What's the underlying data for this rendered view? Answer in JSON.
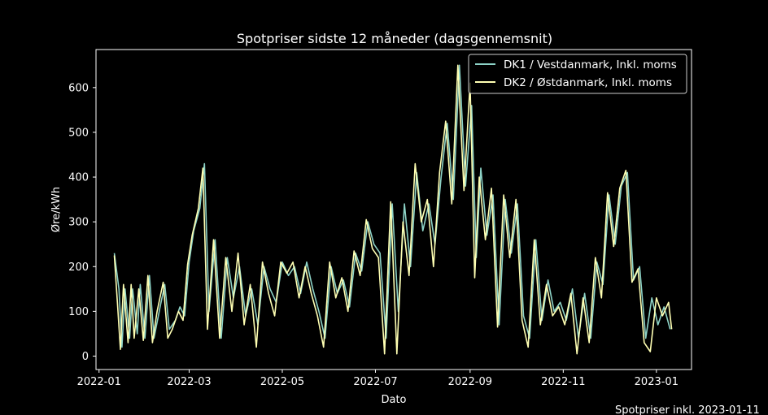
{
  "chart_data": {
    "type": "line",
    "title": "Spotpriser sidste 12 måneder (dagsgennemsnit)",
    "xlabel": "Dato",
    "ylabel": "Øre/kWh",
    "footnote": "Spotpriser inkl. 2023-01-11",
    "xlim": [
      "2021-12-30",
      "2023-01-24"
    ],
    "ylim": [
      -30,
      685
    ],
    "yticks": [
      0,
      100,
      200,
      300,
      400,
      500,
      600
    ],
    "xticks": [
      "2022-01",
      "2022-03",
      "2022-05",
      "2022-07",
      "2022-09",
      "2022-11",
      "2023-01"
    ],
    "grid": false,
    "legend_position": "top-right",
    "background": "#000000",
    "series": [
      {
        "name": "DK1 / Vestdanmark, Inkl. moms",
        "color": "#8dd3c7",
        "points": [
          [
            "2022-01-11",
            230
          ],
          [
            "2022-01-14",
            150
          ],
          [
            "2022-01-16",
            20
          ],
          [
            "2022-01-18",
            150
          ],
          [
            "2022-01-21",
            40
          ],
          [
            "2022-01-23",
            150
          ],
          [
            "2022-01-26",
            50
          ],
          [
            "2022-01-28",
            160
          ],
          [
            "2022-01-31",
            40
          ],
          [
            "2022-02-03",
            180
          ],
          [
            "2022-02-06",
            40
          ],
          [
            "2022-02-10",
            110
          ],
          [
            "2022-02-13",
            160
          ],
          [
            "2022-02-16",
            60
          ],
          [
            "2022-02-20",
            80
          ],
          [
            "2022-02-23",
            110
          ],
          [
            "2022-02-26",
            90
          ],
          [
            "2022-03-01",
            210
          ],
          [
            "2022-03-04",
            280
          ],
          [
            "2022-03-08",
            330
          ],
          [
            "2022-03-11",
            430
          ],
          [
            "2022-03-14",
            100
          ],
          [
            "2022-03-18",
            260
          ],
          [
            "2022-03-22",
            40
          ],
          [
            "2022-03-26",
            220
          ],
          [
            "2022-03-30",
            130
          ],
          [
            "2022-04-03",
            200
          ],
          [
            "2022-04-07",
            90
          ],
          [
            "2022-04-11",
            150
          ],
          [
            "2022-04-15",
            70
          ],
          [
            "2022-04-19",
            200
          ],
          [
            "2022-04-23",
            150
          ],
          [
            "2022-04-27",
            120
          ],
          [
            "2022-05-01",
            210
          ],
          [
            "2022-05-05",
            180
          ],
          [
            "2022-05-09",
            200
          ],
          [
            "2022-05-13",
            140
          ],
          [
            "2022-05-17",
            210
          ],
          [
            "2022-05-21",
            150
          ],
          [
            "2022-05-25",
            100
          ],
          [
            "2022-05-29",
            40
          ],
          [
            "2022-06-02",
            200
          ],
          [
            "2022-06-06",
            140
          ],
          [
            "2022-06-10",
            170
          ],
          [
            "2022-06-14",
            110
          ],
          [
            "2022-06-18",
            230
          ],
          [
            "2022-06-22",
            190
          ],
          [
            "2022-06-26",
            300
          ],
          [
            "2022-06-30",
            250
          ],
          [
            "2022-07-04",
            230
          ],
          [
            "2022-07-08",
            40
          ],
          [
            "2022-07-12",
            340
          ],
          [
            "2022-07-16",
            100
          ],
          [
            "2022-07-20",
            340
          ],
          [
            "2022-07-24",
            200
          ],
          [
            "2022-07-28",
            410
          ],
          [
            "2022-08-01",
            280
          ],
          [
            "2022-08-05",
            340
          ],
          [
            "2022-08-09",
            250
          ],
          [
            "2022-08-13",
            400
          ],
          [
            "2022-08-17",
            520
          ],
          [
            "2022-08-21",
            350
          ],
          [
            "2022-08-25",
            650
          ],
          [
            "2022-08-29",
            380
          ],
          [
            "2022-09-02",
            560
          ],
          [
            "2022-09-05",
            220
          ],
          [
            "2022-09-08",
            420
          ],
          [
            "2022-09-12",
            270
          ],
          [
            "2022-09-16",
            360
          ],
          [
            "2022-09-20",
            70
          ],
          [
            "2022-09-24",
            350
          ],
          [
            "2022-09-28",
            230
          ],
          [
            "2022-10-02",
            340
          ],
          [
            "2022-10-06",
            90
          ],
          [
            "2022-10-10",
            40
          ],
          [
            "2022-10-14",
            260
          ],
          [
            "2022-10-18",
            80
          ],
          [
            "2022-10-22",
            170
          ],
          [
            "2022-10-26",
            100
          ],
          [
            "2022-10-30",
            120
          ],
          [
            "2022-11-03",
            80
          ],
          [
            "2022-11-07",
            150
          ],
          [
            "2022-11-11",
            40
          ],
          [
            "2022-11-15",
            140
          ],
          [
            "2022-11-19",
            40
          ],
          [
            "2022-11-23",
            210
          ],
          [
            "2022-11-27",
            160
          ],
          [
            "2022-12-01",
            360
          ],
          [
            "2022-12-05",
            250
          ],
          [
            "2022-12-09",
            380
          ],
          [
            "2022-12-13",
            410
          ],
          [
            "2022-12-17",
            170
          ],
          [
            "2022-12-21",
            200
          ],
          [
            "2022-12-25",
            40
          ],
          [
            "2022-12-29",
            130
          ],
          [
            "2023-01-02",
            70
          ],
          [
            "2023-01-06",
            110
          ],
          [
            "2023-01-10",
            60
          ]
        ]
      },
      {
        "name": "DK2 / Østdanmark, Inkl. moms",
        "color": "#ffffb3",
        "points": [
          [
            "2022-01-11",
            225
          ],
          [
            "2022-01-13",
            120
          ],
          [
            "2022-01-15",
            15
          ],
          [
            "2022-01-17",
            160
          ],
          [
            "2022-01-20",
            30
          ],
          [
            "2022-01-22",
            160
          ],
          [
            "2022-01-24",
            40
          ],
          [
            "2022-01-27",
            150
          ],
          [
            "2022-01-30",
            35
          ],
          [
            "2022-02-02",
            180
          ],
          [
            "2022-02-05",
            30
          ],
          [
            "2022-02-08",
            100
          ],
          [
            "2022-02-12",
            165
          ],
          [
            "2022-02-15",
            40
          ],
          [
            "2022-02-18",
            60
          ],
          [
            "2022-02-22",
            100
          ],
          [
            "2022-02-25",
            80
          ],
          [
            "2022-02-28",
            205
          ],
          [
            "2022-03-03",
            270
          ],
          [
            "2022-03-07",
            330
          ],
          [
            "2022-03-10",
            420
          ],
          [
            "2022-03-13",
            60
          ],
          [
            "2022-03-17",
            260
          ],
          [
            "2022-03-21",
            40
          ],
          [
            "2022-03-25",
            220
          ],
          [
            "2022-03-29",
            100
          ],
          [
            "2022-04-02",
            230
          ],
          [
            "2022-04-06",
            70
          ],
          [
            "2022-04-10",
            160
          ],
          [
            "2022-04-14",
            20
          ],
          [
            "2022-04-18",
            210
          ],
          [
            "2022-04-22",
            140
          ],
          [
            "2022-04-26",
            90
          ],
          [
            "2022-04-30",
            210
          ],
          [
            "2022-05-04",
            185
          ],
          [
            "2022-05-08",
            210
          ],
          [
            "2022-05-12",
            130
          ],
          [
            "2022-05-16",
            200
          ],
          [
            "2022-05-20",
            140
          ],
          [
            "2022-05-24",
            90
          ],
          [
            "2022-05-28",
            20
          ],
          [
            "2022-06-01",
            210
          ],
          [
            "2022-06-05",
            130
          ],
          [
            "2022-06-09",
            175
          ],
          [
            "2022-06-13",
            100
          ],
          [
            "2022-06-17",
            235
          ],
          [
            "2022-06-21",
            180
          ],
          [
            "2022-06-25",
            305
          ],
          [
            "2022-06-29",
            240
          ],
          [
            "2022-07-03",
            220
          ],
          [
            "2022-07-07",
            5
          ],
          [
            "2022-07-11",
            345
          ],
          [
            "2022-07-15",
            5
          ],
          [
            "2022-07-19",
            300
          ],
          [
            "2022-07-23",
            180
          ],
          [
            "2022-07-27",
            430
          ],
          [
            "2022-07-31",
            300
          ],
          [
            "2022-08-04",
            350
          ],
          [
            "2022-08-08",
            200
          ],
          [
            "2022-08-12",
            410
          ],
          [
            "2022-08-16",
            525
          ],
          [
            "2022-08-20",
            340
          ],
          [
            "2022-08-24",
            650
          ],
          [
            "2022-08-28",
            370
          ],
          [
            "2022-09-01",
            610
          ],
          [
            "2022-09-04",
            175
          ],
          [
            "2022-09-07",
            400
          ],
          [
            "2022-09-11",
            260
          ],
          [
            "2022-09-15",
            375
          ],
          [
            "2022-09-19",
            65
          ],
          [
            "2022-09-23",
            360
          ],
          [
            "2022-09-27",
            220
          ],
          [
            "2022-10-01",
            350
          ],
          [
            "2022-10-05",
            80
          ],
          [
            "2022-10-09",
            20
          ],
          [
            "2022-10-13",
            260
          ],
          [
            "2022-10-17",
            70
          ],
          [
            "2022-10-21",
            160
          ],
          [
            "2022-10-25",
            90
          ],
          [
            "2022-10-29",
            110
          ],
          [
            "2022-11-02",
            70
          ],
          [
            "2022-11-06",
            140
          ],
          [
            "2022-11-10",
            5
          ],
          [
            "2022-11-14",
            130
          ],
          [
            "2022-11-18",
            30
          ],
          [
            "2022-11-22",
            220
          ],
          [
            "2022-11-26",
            130
          ],
          [
            "2022-11-30",
            365
          ],
          [
            "2022-12-04",
            245
          ],
          [
            "2022-12-08",
            375
          ],
          [
            "2022-12-12",
            415
          ],
          [
            "2022-12-16",
            165
          ],
          [
            "2022-12-20",
            195
          ],
          [
            "2022-12-24",
            30
          ],
          [
            "2022-12-28",
            10
          ],
          [
            "2023-01-01",
            130
          ],
          [
            "2023-01-05",
            90
          ],
          [
            "2023-01-09",
            120
          ],
          [
            "2023-01-11",
            60
          ]
        ]
      }
    ]
  }
}
